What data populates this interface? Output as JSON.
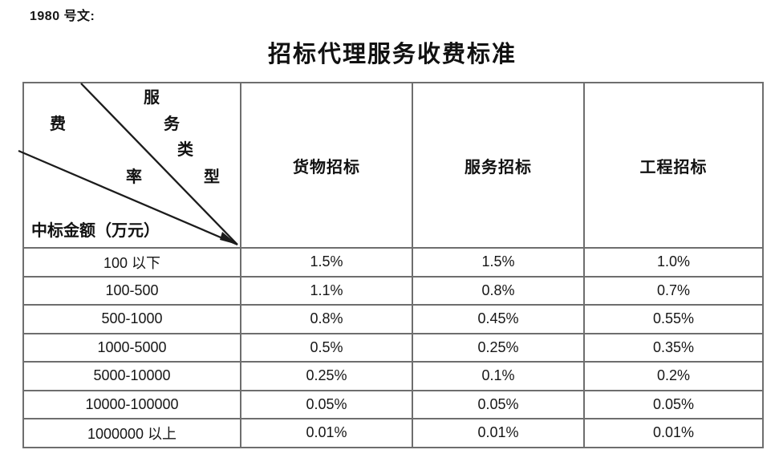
{
  "page": {
    "doc_label": "1980 号文:",
    "title": "招标代理服务收费标准"
  },
  "table": {
    "corner": {
      "service_type_chars": [
        "服",
        "务",
        "类",
        "型"
      ],
      "fee_rate_chars": [
        "费",
        "率"
      ],
      "bottom_label": "中标金额（万元）"
    },
    "columns": [
      "货物招标",
      "服务招标",
      "工程招标"
    ],
    "rows": [
      {
        "label": "100 以下",
        "values": [
          "1.5%",
          "1.5%",
          "1.0%"
        ]
      },
      {
        "label": "100-500",
        "values": [
          "1.1%",
          "0.8%",
          "0.7%"
        ]
      },
      {
        "label": "500-1000",
        "values": [
          "0.8%",
          "0.45%",
          "0.55%"
        ]
      },
      {
        "label": "1000-5000",
        "values": [
          "0.5%",
          "0.25%",
          "0.35%"
        ]
      },
      {
        "label": "5000-10000",
        "values": [
          "0.25%",
          "0.1%",
          "0.2%"
        ]
      },
      {
        "label": "10000-100000",
        "values": [
          "0.05%",
          "0.05%",
          "0.05%"
        ]
      },
      {
        "label": "1000000 以上",
        "values": [
          "0.01%",
          "0.01%",
          "0.01%"
        ]
      }
    ]
  },
  "colors": {
    "border": "#6e6e6e",
    "diagonal_line": "#1c1c1c",
    "text": "#161616"
  }
}
